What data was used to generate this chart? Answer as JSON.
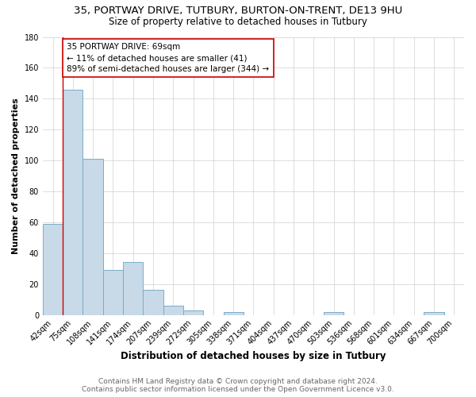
{
  "title_line1": "35, PORTWAY DRIVE, TUTBURY, BURTON-ON-TRENT, DE13 9HU",
  "title_line2": "Size of property relative to detached houses in Tutbury",
  "xlabel": "Distribution of detached houses by size in Tutbury",
  "ylabel": "Number of detached properties",
  "bar_labels": [
    "42sqm",
    "75sqm",
    "108sqm",
    "141sqm",
    "174sqm",
    "207sqm",
    "239sqm",
    "272sqm",
    "305sqm",
    "338sqm",
    "371sqm",
    "404sqm",
    "437sqm",
    "470sqm",
    "503sqm",
    "536sqm",
    "568sqm",
    "601sqm",
    "634sqm",
    "667sqm",
    "700sqm"
  ],
  "bar_heights": [
    59,
    146,
    101,
    29,
    34,
    16,
    6,
    3,
    0,
    2,
    0,
    0,
    0,
    0,
    2,
    0,
    0,
    0,
    0,
    2,
    0
  ],
  "bar_color": "#c8d9e8",
  "bar_edge_color": "#7aadc8",
  "property_line_label": "35 PORTWAY DRIVE: 69sqm",
  "annotation_smaller": "← 11% of detached houses are smaller (41)",
  "annotation_larger": "89% of semi-detached houses are larger (344) →",
  "annotation_box_color": "#ffffff",
  "annotation_box_edge": "#cc0000",
  "vline_color": "#cc0000",
  "vline_x": 0.5,
  "ylim": [
    0,
    180
  ],
  "yticks": [
    0,
    20,
    40,
    60,
    80,
    100,
    120,
    140,
    160,
    180
  ],
  "footer_line1": "Contains HM Land Registry data © Crown copyright and database right 2024.",
  "footer_line2": "Contains public sector information licensed under the Open Government Licence v3.0.",
  "bg_color": "#ffffff",
  "grid_color": "#d0d0d0",
  "title_fontsize": 9.5,
  "subtitle_fontsize": 8.5,
  "xlabel_fontsize": 8.5,
  "ylabel_fontsize": 8,
  "tick_fontsize": 7,
  "annotation_fontsize": 7.5,
  "footer_fontsize": 6.5
}
